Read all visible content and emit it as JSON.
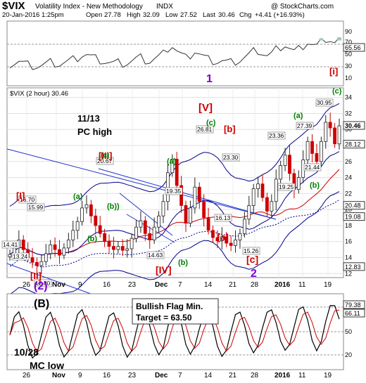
{
  "header": {
    "symbol": "$VIX",
    "name": "Volatility Index - New Methodology",
    "exchange": "INDX",
    "source": "@ StockCharts.com",
    "date": "20-Jan-2016 1:25pm",
    "open_label": "Open",
    "open": "27.78",
    "high_label": "High",
    "high": "32.09",
    "low_label": "Low",
    "low": "27.52",
    "last_label": "Last",
    "last": "30.46",
    "chg_label": "Chg",
    "chg": "+4.41 (+16.93%)"
  },
  "panels": {
    "rsi_top": {
      "labels": [
        "90",
        "70",
        "50",
        "30",
        "10"
      ],
      "value": "65.56"
    },
    "main": {
      "legend": "$VIX (2 hour) 30.46"
    },
    "stoch": {
      "value1": "79.38",
      "value2": "66.11",
      "labels": [
        "80",
        "50",
        "20"
      ]
    }
  },
  "x_axis": {
    "labels": [
      "26",
      "Nov",
      "9",
      "16",
      "23",
      "Dec",
      "7",
      "14",
      "21",
      "28",
      "2016",
      "11",
      "19"
    ]
  },
  "annotations": {
    "wave1": "1",
    "pc_high_line1": "11/13",
    "pc_high_line2": "PC high",
    "flag_line1": "Bullish Flag Min.",
    "flag_line2": "Target = 63.50",
    "mc_low_line1": "10/28",
    "mc_low_line2": "MC low",
    "wave2": "(2)",
    "waveB": "(B)"
  },
  "colors": {
    "up": "#006400",
    "down": "#cc0000",
    "ma_red": "#cc0000",
    "ma_blue": "#00008b",
    "band": "#00008b",
    "wave_green": "#008000",
    "wave_red": "#cc0000",
    "wave_purple": "#7b00d4",
    "trend": "#2233cc"
  },
  "chart_data": {
    "type": "candlestick",
    "title": "$VIX (2 hour)",
    "y_ticks": [
      12,
      14,
      16,
      18,
      20,
      22,
      24,
      26,
      28,
      30,
      32,
      34
    ],
    "price_labels": [
      "30.46",
      "28.12",
      "20.48",
      "19.08",
      "12.83"
    ],
    "wave_labels": [
      {
        "text": "[I]",
        "color": "red",
        "value": "16.70"
      },
      {
        "text": "(a)",
        "color": "green"
      },
      {
        "text": "(b)",
        "color": "green"
      },
      {
        "text": "[II]",
        "color": "red"
      },
      {
        "text": "[III]",
        "color": "red"
      },
      {
        "text": "(c)",
        "color": "green"
      },
      {
        "text": "(b))",
        "color": "green"
      },
      {
        "text": "(a)",
        "color": "green"
      },
      {
        "text": "[IV]",
        "color": "red"
      },
      {
        "text": "(b)",
        "color": "green"
      },
      {
        "text": "[V]",
        "color": "red"
      },
      {
        "text": "(c)",
        "color": "green"
      },
      {
        "text": "[b]",
        "color": "red"
      },
      {
        "text": "[a]",
        "color": "red"
      },
      {
        "text": "[c]",
        "color": "red"
      },
      {
        "text": "2",
        "color": "purple"
      },
      {
        "text": "(a)",
        "color": "green"
      },
      {
        "text": "(b)",
        "color": "green"
      },
      {
        "text": "(c)",
        "color": "green"
      },
      {
        "text": "[i]",
        "color": "red"
      }
    ],
    "value_labels": [
      "16.70",
      "15.99",
      "14.41",
      "13.24",
      "12.80",
      "20.67",
      "19.35",
      "14.63",
      "26.81",
      "23.30",
      "16.13",
      "15.26",
      "23.36",
      "19.25",
      "27.39",
      "21.44",
      "30.95"
    ],
    "closes": [
      14.4,
      15.2,
      16.2,
      15.0,
      14.0,
      13.4,
      13.0,
      13.5,
      14.5,
      15.6,
      15.0,
      14.3,
      15.2,
      16.2,
      17.4,
      18.5,
      20.2,
      20.6,
      19.2,
      18.0,
      17.0,
      16.0,
      15.4,
      15.0,
      15.4,
      14.9,
      15.1,
      16.4,
      17.8,
      18.6,
      17.0,
      16.2,
      17.8,
      19.2,
      21.0,
      24.6,
      26.3,
      23.0,
      20.5,
      18.3,
      20.2,
      22.8,
      21.0,
      19.0,
      17.4,
      16.5,
      16.1,
      16.6,
      15.8,
      15.5,
      16.2,
      17.0,
      18.8,
      20.5,
      22.6,
      23.2,
      21.5,
      19.8,
      21.0,
      23.8,
      25.5,
      26.8,
      24.5,
      22.5,
      24.0,
      26.2,
      28.5,
      27.0,
      26.0,
      28.5,
      30.9,
      30.2,
      28.2,
      30.46
    ]
  }
}
